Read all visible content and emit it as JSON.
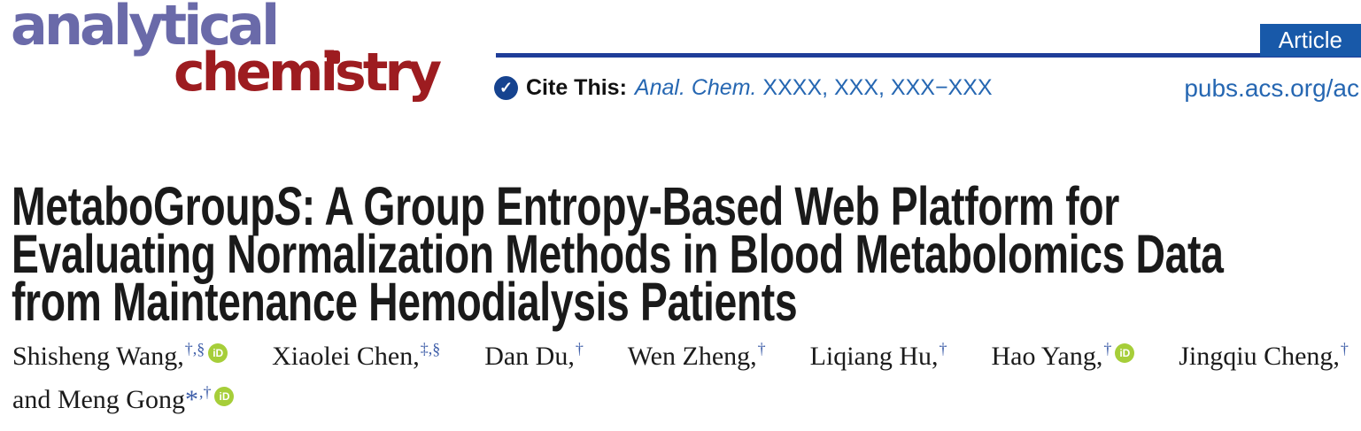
{
  "journal": {
    "logo_word1": "analytical",
    "logo_dot": ".",
    "logo_word2": "chemistry",
    "article_badge": "Article",
    "site_link": "pubs.acs.org/ac",
    "cite_label": "Cite This:",
    "cite_journal": "Anal. Chem.",
    "cite_rest": " XXXX, XXX, XXX−XXX"
  },
  "title": {
    "line1_regular": "MetaboGroup",
    "line1_italic": "S",
    "line1_rest": ": A Group Entropy-Based Web Platform for",
    "line2": "Evaluating Normalization Methods in Blood Metabolomics Data",
    "line3": "from Maintenance Hemodialysis Patients"
  },
  "authors": {
    "orcid_label": "iD",
    "line1": [
      {
        "name": "Shisheng Wang,",
        "sup": "†,§",
        "orcid": true
      },
      {
        "name": "Xiaolei Chen,",
        "sup": "‡,§",
        "orcid": false
      },
      {
        "name": "Dan Du,",
        "sup": "†",
        "orcid": false
      },
      {
        "name": "Wen Zheng,",
        "sup": "†",
        "orcid": false
      },
      {
        "name": "Liqiang Hu,",
        "sup": "†",
        "orcid": false
      },
      {
        "name": "Hao Yang,",
        "sup": "†",
        "orcid": true
      },
      {
        "name": "Jingqiu Cheng,",
        "sup": "†",
        "orcid": false
      }
    ],
    "line2": [
      {
        "name": "and Meng Gong",
        "star": "*",
        "sup": ",†",
        "orcid": true
      }
    ]
  },
  "colors": {
    "logo_purple": "#6a6aa9",
    "logo_red": "#9d1c20",
    "rule_navy": "#1f3d99",
    "badge_blue": "#1859a9",
    "link_blue": "#2667b2",
    "superscript_blue": "#3d5da8",
    "orcid_green": "#a6ce39"
  }
}
